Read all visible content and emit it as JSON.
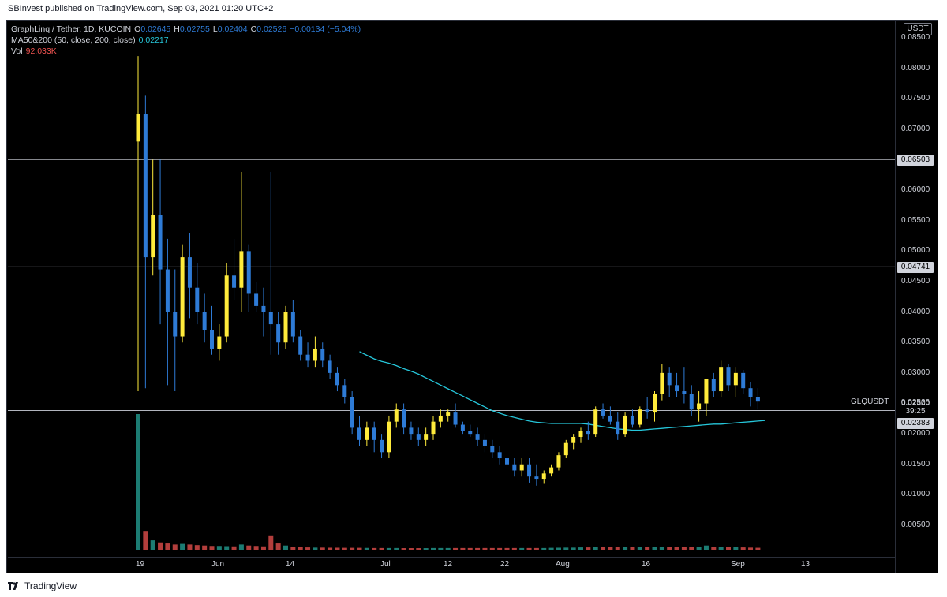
{
  "header": {
    "text": "SBInvest published on TradingView.com, Sep 03, 2021 01:20 UTC+2"
  },
  "legend": {
    "symbol": "GraphLinq / Tether, 1D, KUCOIN",
    "open_label": "O",
    "open": "0.02645",
    "high_label": "H",
    "high": "0.02755",
    "low_label": "L",
    "low": "0.02404",
    "close_label": "C",
    "close": "0.02526",
    "change": "−0.00134 (−5.04%)",
    "ma_label": "MA50&200 (50, close, 200, close)",
    "ma_value": "0.02217",
    "vol_label": "Vol",
    "vol_value": "92.033K"
  },
  "currency": "USDT",
  "symbol_label": "GLQUSDT",
  "price_boxes": {
    "level1": "0.06503",
    "level2": "0.04741",
    "current": "0.02526",
    "countdown": "39:25",
    "level3": "0.02383"
  },
  "footer": {
    "brand": "TradingView",
    "icon": "tradingview-logo-icon"
  },
  "colors": {
    "up": "#ffeb3b",
    "down": "#2e7bd6",
    "ma": "#26c6da",
    "vol_up": "#26a69a",
    "vol_down": "#ef5350",
    "background": "#000000"
  },
  "chart_data": {
    "type": "candlestick",
    "timeframe": "1D",
    "ylim": [
      0.0,
      0.088
    ],
    "y_ticks": [
      "0.08500",
      "0.08000",
      "0.07500",
      "0.07000",
      "0.06500",
      "0.06000",
      "0.05500",
      "0.05000",
      "0.04500",
      "0.04000",
      "0.03500",
      "0.03000",
      "0.02500",
      "0.02000",
      "0.01500",
      "0.01000",
      "0.00500"
    ],
    "x_ticks": [
      "19",
      "Jun",
      "14",
      "Jul",
      "12",
      "22",
      "Aug",
      "16",
      "Sep",
      "13"
    ],
    "horizontal_levels": [
      0.06503,
      0.04741,
      0.02383
    ],
    "candles_ohlc": [
      [
        0.068,
        0.082,
        0.027,
        0.0725
      ],
      [
        0.0725,
        0.0755,
        0.0275,
        0.049
      ],
      [
        0.049,
        0.065,
        0.046,
        0.056
      ],
      [
        0.056,
        0.065,
        0.038,
        0.047
      ],
      [
        0.047,
        0.052,
        0.028,
        0.04
      ],
      [
        0.04,
        0.047,
        0.027,
        0.036
      ],
      [
        0.036,
        0.051,
        0.035,
        0.049
      ],
      [
        0.049,
        0.053,
        0.039,
        0.044
      ],
      [
        0.044,
        0.048,
        0.038,
        0.04
      ],
      [
        0.04,
        0.043,
        0.035,
        0.037
      ],
      [
        0.037,
        0.041,
        0.033,
        0.034
      ],
      [
        0.034,
        0.038,
        0.032,
        0.036
      ],
      [
        0.036,
        0.048,
        0.035,
        0.046
      ],
      [
        0.046,
        0.052,
        0.042,
        0.044
      ],
      [
        0.044,
        0.063,
        0.04,
        0.05
      ],
      [
        0.05,
        0.051,
        0.04,
        0.043
      ],
      [
        0.043,
        0.045,
        0.04,
        0.041
      ],
      [
        0.041,
        0.044,
        0.036,
        0.04
      ],
      [
        0.04,
        0.063,
        0.033,
        0.038
      ],
      [
        0.038,
        0.04,
        0.033,
        0.035
      ],
      [
        0.035,
        0.041,
        0.034,
        0.04
      ],
      [
        0.04,
        0.042,
        0.035,
        0.036
      ],
      [
        0.036,
        0.037,
        0.032,
        0.033
      ],
      [
        0.033,
        0.035,
        0.031,
        0.032
      ],
      [
        0.032,
        0.036,
        0.031,
        0.034
      ],
      [
        0.034,
        0.035,
        0.031,
        0.032
      ],
      [
        0.032,
        0.033,
        0.029,
        0.03
      ],
      [
        0.03,
        0.031,
        0.027,
        0.028
      ],
      [
        0.028,
        0.029,
        0.025,
        0.026
      ],
      [
        0.026,
        0.027,
        0.02,
        0.021
      ],
      [
        0.021,
        0.023,
        0.018,
        0.019
      ],
      [
        0.019,
        0.022,
        0.018,
        0.021
      ],
      [
        0.021,
        0.022,
        0.017,
        0.019
      ],
      [
        0.019,
        0.02,
        0.016,
        0.017
      ],
      [
        0.017,
        0.023,
        0.016,
        0.022
      ],
      [
        0.022,
        0.025,
        0.021,
        0.024
      ],
      [
        0.024,
        0.025,
        0.02,
        0.021
      ],
      [
        0.021,
        0.022,
        0.019,
        0.02
      ],
      [
        0.02,
        0.021,
        0.018,
        0.019
      ],
      [
        0.019,
        0.021,
        0.018,
        0.02
      ],
      [
        0.02,
        0.023,
        0.019,
        0.022
      ],
      [
        0.022,
        0.024,
        0.021,
        0.023
      ],
      [
        0.023,
        0.024,
        0.022,
        0.0235
      ],
      [
        0.0235,
        0.025,
        0.021,
        0.0215
      ],
      [
        0.0215,
        0.022,
        0.02,
        0.0205
      ],
      [
        0.0205,
        0.0215,
        0.0195,
        0.02
      ],
      [
        0.02,
        0.021,
        0.018,
        0.019
      ],
      [
        0.019,
        0.02,
        0.017,
        0.018
      ],
      [
        0.018,
        0.019,
        0.016,
        0.017
      ],
      [
        0.017,
        0.018,
        0.015,
        0.016
      ],
      [
        0.016,
        0.017,
        0.014,
        0.015
      ],
      [
        0.015,
        0.016,
        0.013,
        0.014
      ],
      [
        0.014,
        0.016,
        0.013,
        0.015
      ],
      [
        0.015,
        0.016,
        0.012,
        0.013
      ],
      [
        0.013,
        0.015,
        0.0115,
        0.0125
      ],
      [
        0.0125,
        0.014,
        0.0118,
        0.0135
      ],
      [
        0.0135,
        0.015,
        0.013,
        0.0145
      ],
      [
        0.0145,
        0.017,
        0.014,
        0.0165
      ],
      [
        0.0165,
        0.019,
        0.016,
        0.0185
      ],
      [
        0.0185,
        0.02,
        0.0175,
        0.0195
      ],
      [
        0.0195,
        0.021,
        0.0185,
        0.0205
      ],
      [
        0.0205,
        0.022,
        0.019,
        0.02
      ],
      [
        0.02,
        0.0245,
        0.0195,
        0.024
      ],
      [
        0.024,
        0.025,
        0.0225,
        0.023
      ],
      [
        0.023,
        0.0245,
        0.0215,
        0.022
      ],
      [
        0.022,
        0.0235,
        0.019,
        0.02
      ],
      [
        0.02,
        0.0235,
        0.0195,
        0.023
      ],
      [
        0.023,
        0.024,
        0.021,
        0.0215
      ],
      [
        0.0215,
        0.0245,
        0.021,
        0.024
      ],
      [
        0.024,
        0.026,
        0.0225,
        0.0235
      ],
      [
        0.0235,
        0.027,
        0.022,
        0.0265
      ],
      [
        0.0265,
        0.0315,
        0.0255,
        0.03
      ],
      [
        0.03,
        0.031,
        0.026,
        0.028
      ],
      [
        0.028,
        0.03,
        0.026,
        0.027
      ],
      [
        0.027,
        0.031,
        0.025,
        0.0265
      ],
      [
        0.0265,
        0.028,
        0.023,
        0.024
      ],
      [
        0.024,
        0.027,
        0.022,
        0.025
      ],
      [
        0.025,
        0.028,
        0.023,
        0.029
      ],
      [
        0.029,
        0.03,
        0.026,
        0.027
      ],
      [
        0.027,
        0.032,
        0.026,
        0.031
      ],
      [
        0.031,
        0.0315,
        0.027,
        0.028
      ],
      [
        0.028,
        0.031,
        0.026,
        0.03
      ],
      [
        0.03,
        0.0305,
        0.0265,
        0.0275
      ],
      [
        0.0275,
        0.0285,
        0.0245,
        0.026
      ],
      [
        0.026,
        0.0275,
        0.024,
        0.0253
      ]
    ],
    "ma50": [
      0.0335,
      0.0329,
      0.0323,
      0.0319,
      0.0316,
      0.0312,
      0.0307,
      0.0303,
      0.0298,
      0.0292,
      0.0286,
      0.028,
      0.0274,
      0.0268,
      0.0262,
      0.0256,
      0.025,
      0.0244,
      0.0238,
      0.0234,
      0.023,
      0.0227,
      0.0224,
      0.0221,
      0.0219,
      0.0218,
      0.0217,
      0.0217,
      0.0217,
      0.0217,
      0.0217,
      0.0216,
      0.0214,
      0.0212,
      0.021,
      0.0208,
      0.0207,
      0.0206,
      0.0206,
      0.0207,
      0.0208,
      0.0209,
      0.021,
      0.0211,
      0.0212,
      0.0213,
      0.0214,
      0.0215,
      0.0216,
      0.0216,
      0.0217,
      0.0218,
      0.0219,
      0.022,
      0.0221,
      0.0222
    ],
    "volume": [
      6500000,
      900000,
      450000,
      350000,
      300000,
      250000,
      280000,
      250000,
      220000,
      200000,
      180000,
      180000,
      170000,
      160000,
      250000,
      200000,
      180000,
      160000,
      650000,
      300000,
      200000,
      150000,
      120000,
      110000,
      100000,
      100000,
      95000,
      95000,
      90000,
      90000,
      90000,
      85000,
      80000,
      80000,
      80000,
      80000,
      75000,
      75000,
      75000,
      75000,
      80000,
      80000,
      80000,
      80000,
      80000,
      80000,
      80000,
      80000,
      80000,
      80000,
      80000,
      80000,
      80000,
      80000,
      80000,
      80000,
      90000,
      95000,
      100000,
      100000,
      110000,
      110000,
      120000,
      120000,
      120000,
      120000,
      130000,
      130000,
      140000,
      140000,
      150000,
      150000,
      150000,
      150000,
      140000,
      140000,
      150000,
      200000,
      150000,
      140000,
      130000,
      120000,
      110000,
      100000,
      92033
    ]
  }
}
